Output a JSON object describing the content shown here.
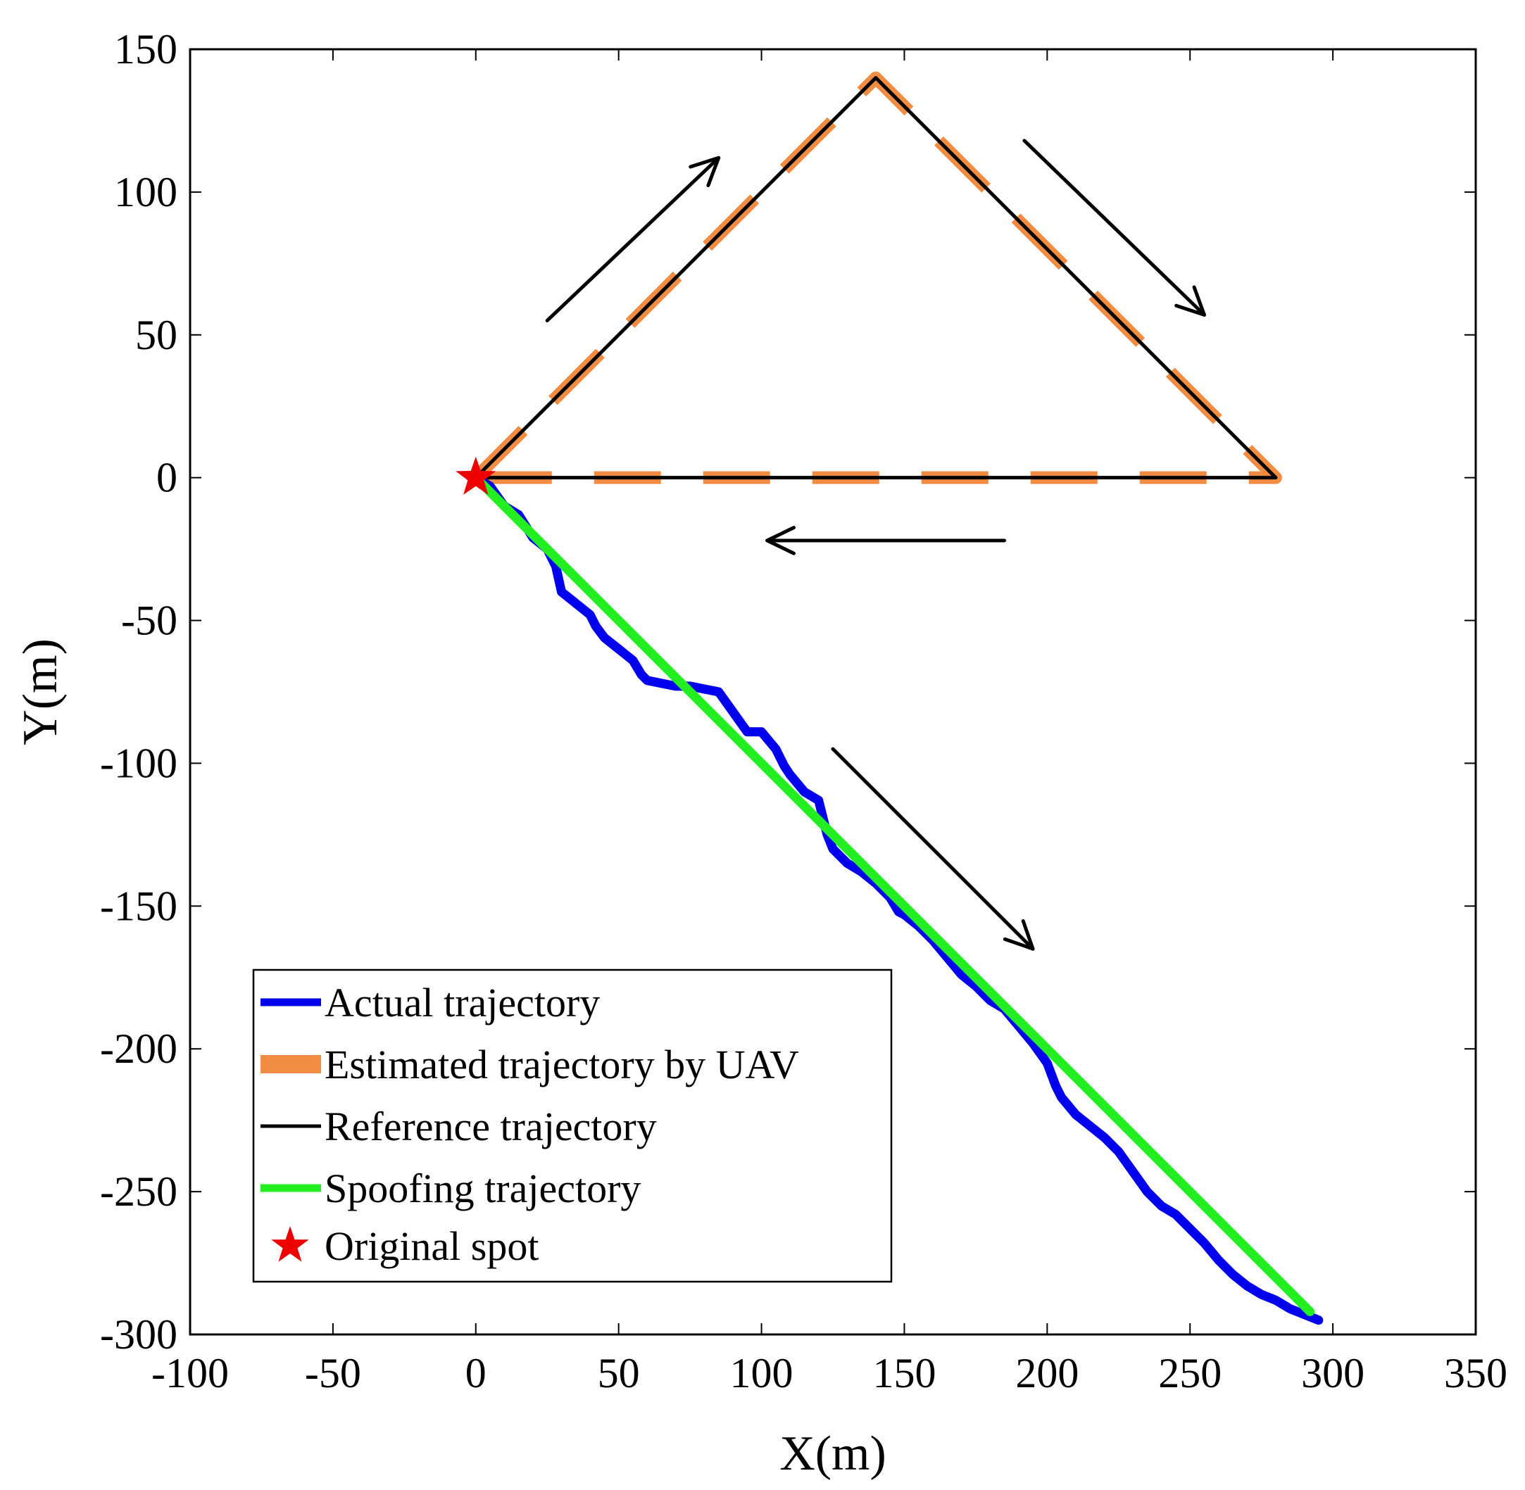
{
  "chart_data": {
    "type": "line",
    "title": "",
    "xlabel": "X(m)",
    "ylabel": "Y(m)",
    "xlim": [
      -100,
      350
    ],
    "ylim": [
      -300,
      150
    ],
    "xticks": [
      -100,
      -50,
      0,
      50,
      100,
      150,
      200,
      250,
      300,
      350
    ],
    "yticks": [
      -300,
      -250,
      -200,
      -150,
      -100,
      -50,
      0,
      50,
      100,
      150
    ],
    "xtick_labels": [
      "-100",
      "-50",
      "0",
      "50",
      "100",
      "150",
      "200",
      "250",
      "300",
      "350"
    ],
    "ytick_labels": [
      "-300",
      "-250",
      "-200",
      "-150",
      "-100",
      "-50",
      "0",
      "50",
      "100",
      "150"
    ],
    "grid": false,
    "legend_position": "bottom-left",
    "series": [
      {
        "name": "Actual trajectory",
        "color": "#0000ee",
        "style": "solid-thick",
        "x": [
          0,
          5,
          10,
          15,
          20,
          25,
          28,
          30,
          35,
          40,
          42,
          45,
          50,
          55,
          58,
          60,
          65,
          70,
          75,
          80,
          85,
          90,
          95,
          100,
          105,
          108,
          110,
          115,
          120,
          122,
          123,
          125,
          130,
          135,
          140,
          145,
          148,
          150,
          155,
          160,
          165,
          170,
          175,
          180,
          185,
          190,
          195,
          200,
          203,
          205,
          210,
          215,
          220,
          225,
          230,
          235,
          240,
          245,
          250,
          255,
          260,
          265,
          270,
          275,
          280,
          285,
          290,
          295
        ],
        "y": [
          0,
          -3,
          -10,
          -13,
          -21,
          -25,
          -31,
          -40,
          -44,
          -48,
          -52,
          -56,
          -60,
          -64,
          -69,
          -71,
          -72,
          -73,
          -73,
          -74,
          -75,
          -82,
          -89,
          -89,
          -95,
          -101,
          -104,
          -110,
          -113,
          -121,
          -125,
          -130,
          -135,
          -138,
          -142,
          -147,
          -152,
          -153,
          -157,
          -162,
          -168,
          -174,
          -178,
          -183,
          -186,
          -192,
          -198,
          -205,
          -213,
          -217,
          -223,
          -227,
          -231,
          -236,
          -243,
          -250,
          -255,
          -258,
          -263,
          -268,
          -274,
          -279,
          -283,
          -286,
          -288,
          -291,
          -293,
          -295
        ]
      },
      {
        "name": "Estimated trajectory by UAV",
        "color": "#f28c43",
        "style": "dashed-thick",
        "x": [
          0,
          140,
          280,
          0
        ],
        "y": [
          0,
          140,
          0,
          0
        ]
      },
      {
        "name": "Reference trajectory",
        "color": "#000000",
        "style": "solid-thin",
        "x": [
          0,
          140,
          280,
          0
        ],
        "y": [
          0,
          140,
          0,
          0
        ]
      },
      {
        "name": "Spoofing trajectory",
        "color": "#22ee22",
        "style": "solid-thick",
        "x": [
          0,
          292
        ],
        "y": [
          0,
          -292
        ]
      },
      {
        "name": "Original spot",
        "color": "#ee0000",
        "style": "star-marker",
        "x": [
          0
        ],
        "y": [
          0
        ]
      }
    ],
    "annotations": [
      {
        "type": "arrow",
        "from": [
          25,
          55
        ],
        "to": [
          85,
          112
        ]
      },
      {
        "type": "arrow",
        "from": [
          192,
          118
        ],
        "to": [
          255,
          57
        ]
      },
      {
        "type": "arrow",
        "from": [
          185,
          -22
        ],
        "to": [
          102,
          -22
        ]
      },
      {
        "type": "arrow",
        "from": [
          125,
          -95
        ],
        "to": [
          195,
          -165
        ]
      }
    ]
  }
}
